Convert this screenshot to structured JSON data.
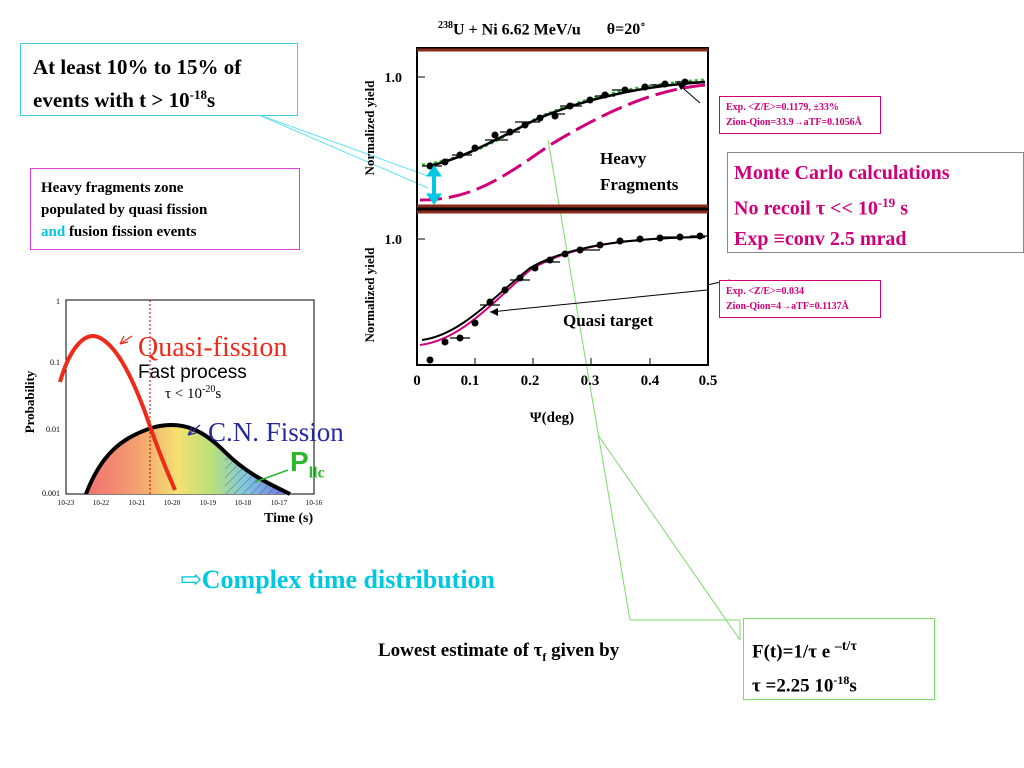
{
  "callout_top": {
    "line1": "At least 10% to 15% of",
    "line2_pre": "events with t > 10",
    "line2_sup": "-18",
    "line2_post": "s"
  },
  "zone_box": {
    "line1": "Heavy fragments zone",
    "line2": "populated by quasi fission",
    "line3_and": "and",
    "line3_rest": " fusion fission events"
  },
  "prob_plot": {
    "ylabel": "Probability",
    "xlabel": "Time (s)",
    "yticks": [
      "1",
      "0.1",
      "0.01",
      "0.001"
    ],
    "xticks": [
      "10-23",
      "10-22",
      "10-21",
      "10-20",
      "10-19",
      "10-18",
      "10-17",
      "10-16"
    ],
    "quasi_fission": "Quasi-fission",
    "fast_process": "Fast process",
    "tau_pre": "τ < 10",
    "tau_sup": "-20",
    "tau_post": "s",
    "cn_fission": "C.N. Fission",
    "p_main": "P",
    "p_sub": "llc"
  },
  "main_plot": {
    "title_sup": "238",
    "title_rest": "U + Ni 6.62 MeV/u",
    "title_theta": "θ=20˚",
    "ylabel": "Normalized yield",
    "ytick": "1.0",
    "xlabel": "Ψ(deg)",
    "xticks": [
      "0",
      "0.1",
      "0.2",
      "0.3",
      "0.4",
      "0.5"
    ],
    "heavy1": "Heavy",
    "heavy2": "Fragments",
    "quasi_target": "Quasi target"
  },
  "exp_box1": {
    "line1": "Exp.  <Z/E>=0.1179, ±33%",
    "line2": "Zion-Qion=33.9→aTF=0.1056Å"
  },
  "exp_box2": {
    "line1": "Exp.  <Z/E>=0.034",
    "line2": "Zion-Qion=4→aTF=0.1137Å"
  },
  "mc_box": {
    "line1": "Monte Carlo calculations",
    "line2_pre": " No recoil τ << 10",
    "line2_sup": "-19",
    "line2_post": " s",
    "line3": "Exp ≡conv 2.5 mrad"
  },
  "complex": "⇨Complex time distribution",
  "lowest": {
    "pre": "Lowest estimate of τ",
    "sub": "f",
    "post": " given by"
  },
  "formula_box": {
    "line1_pre": "F(t)=1/τ e ",
    "line1_sup": "–t/τ",
    "line2_pre": "τ =2.25 10",
    "line2_sup": "-18",
    "line2_post": "s"
  },
  "colors": {
    "cyan": "#00c8e0",
    "magenta": "#d0007a",
    "green": "#2db82d",
    "red": "#ee2b1a",
    "blue": "#2a2aa0",
    "dark_red": "#7a1a10"
  }
}
